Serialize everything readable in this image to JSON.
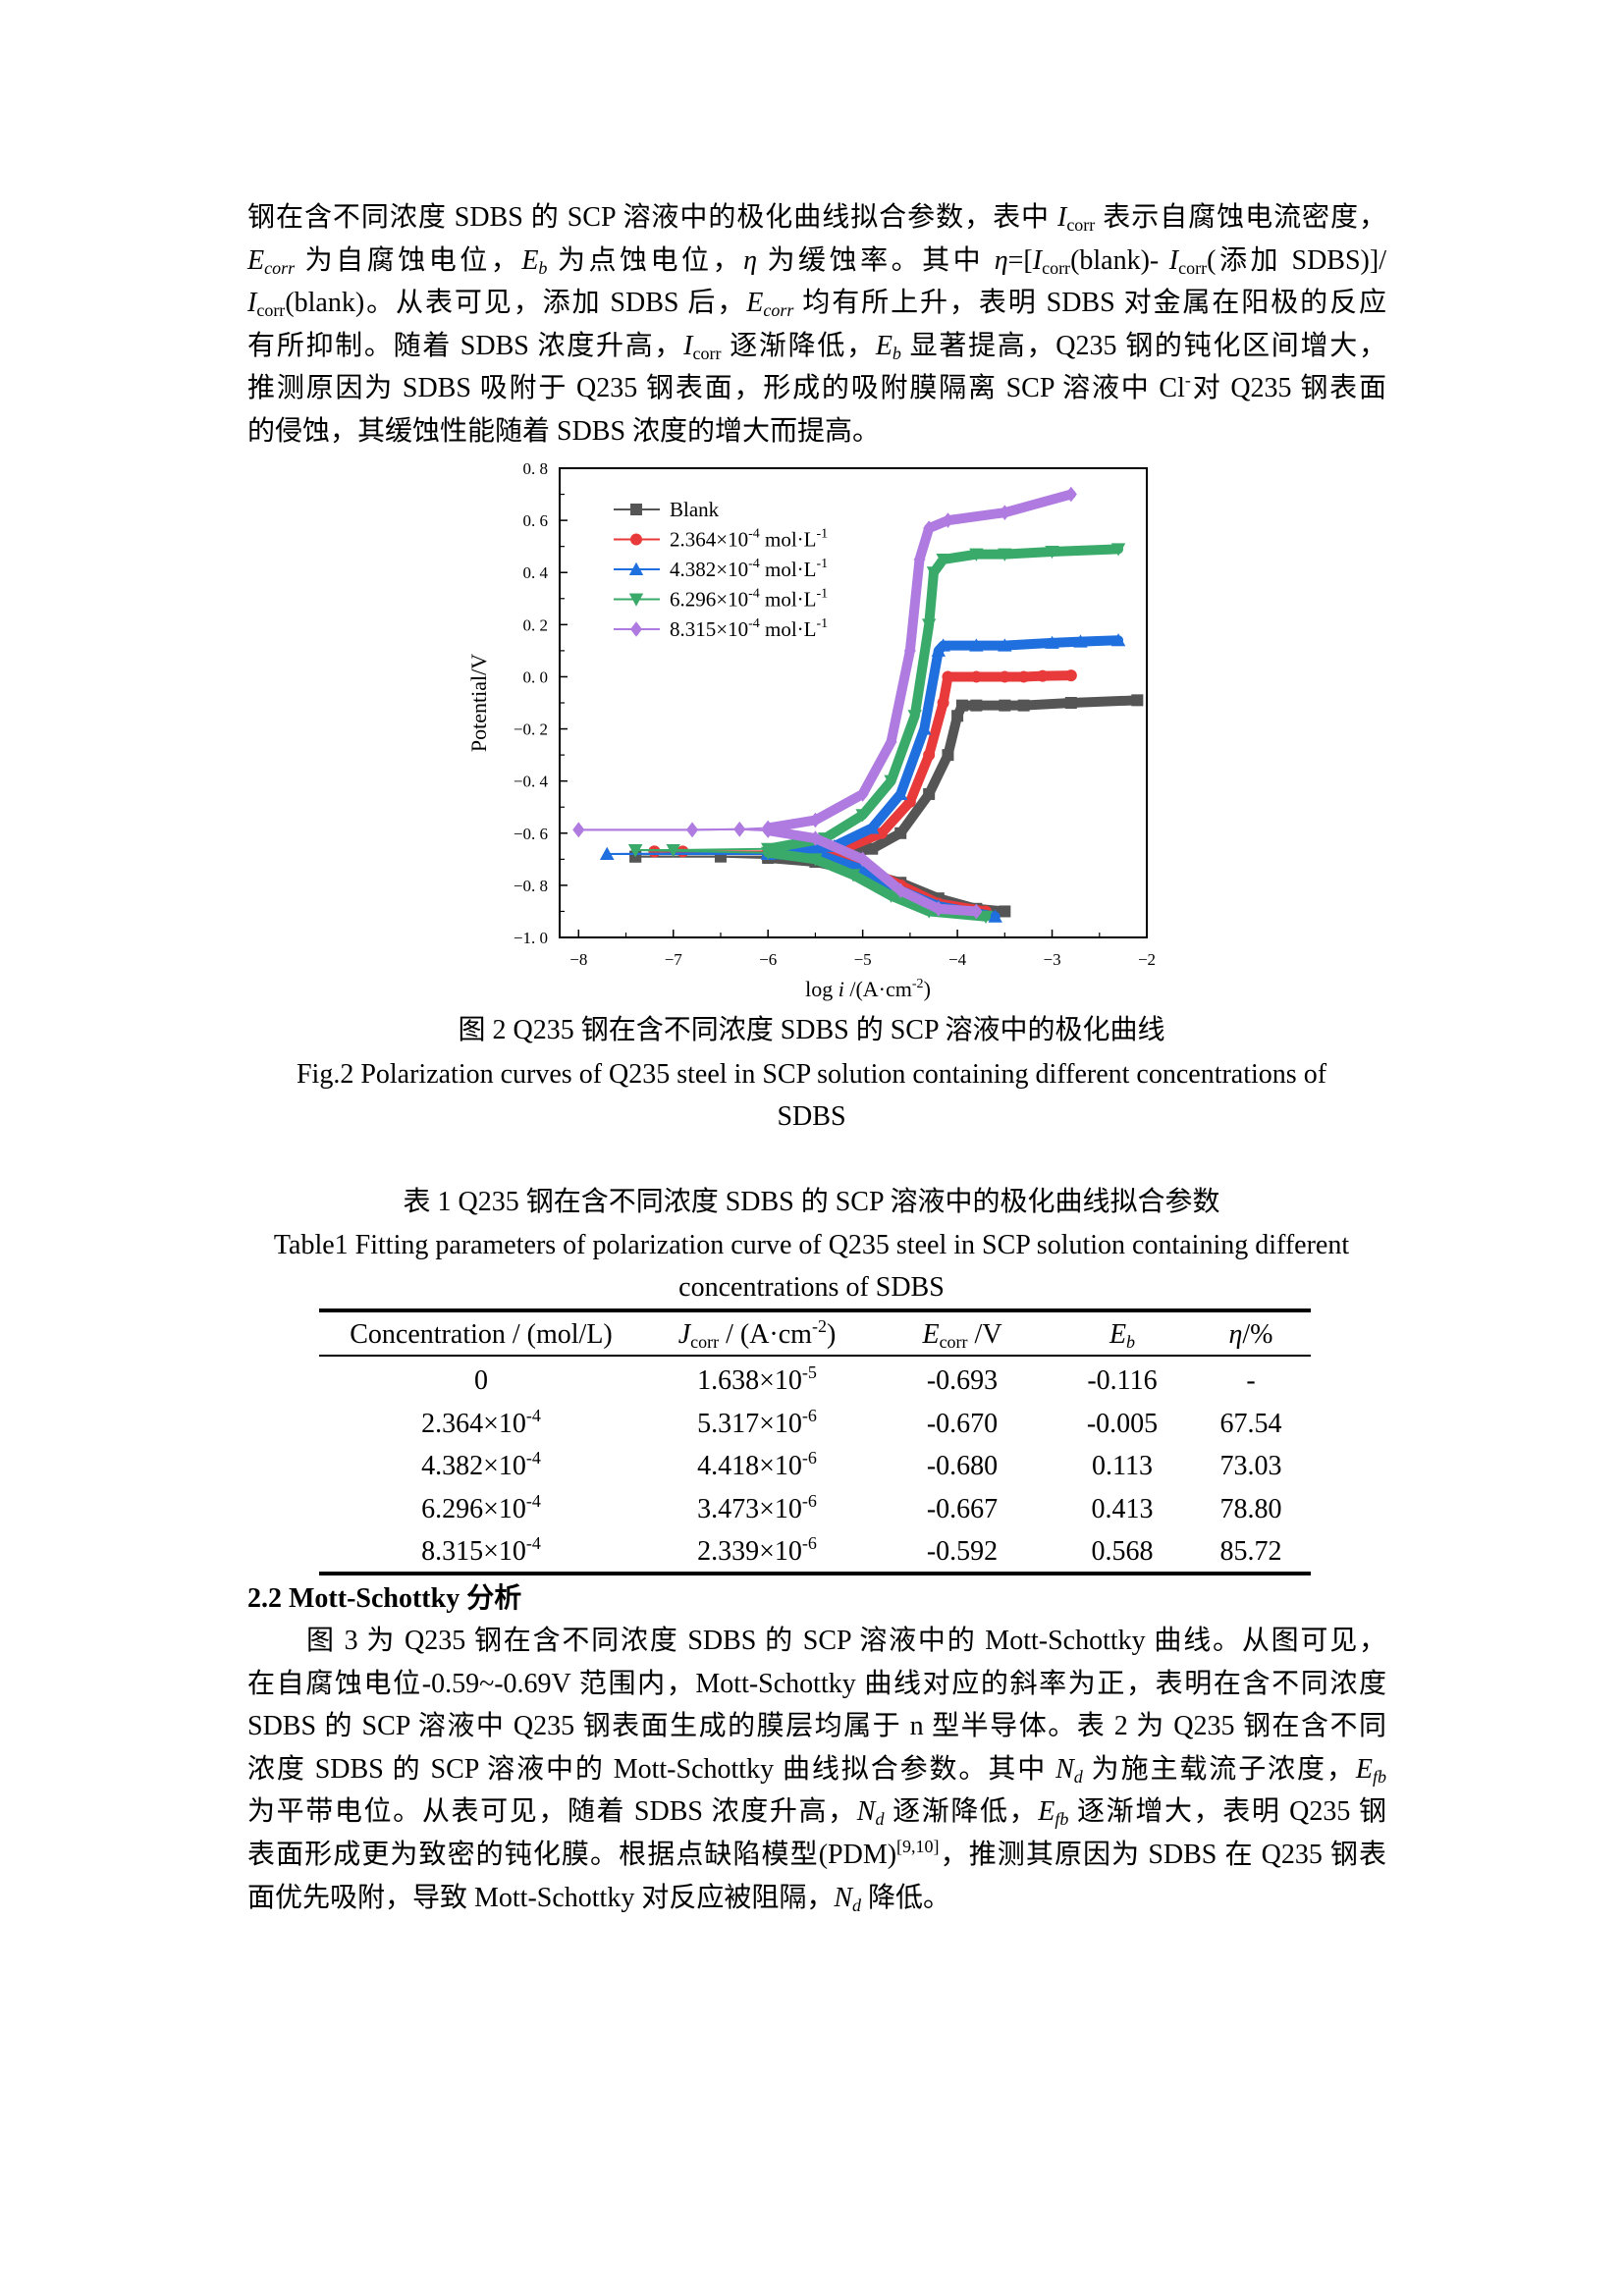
{
  "para1": {
    "lines": [
      [
        [
          "t",
          "钢在含不同浓度 SDBS 的 SCP 溶液中的极化曲线拟合参数，表中 "
        ],
        [
          "i",
          "I"
        ],
        [
          "sub",
          "corr"
        ],
        [
          "t",
          " 表示自腐蚀电流密度，"
        ]
      ],
      [
        [
          "i",
          "E"
        ],
        [
          "isub",
          "corr"
        ],
        [
          "t",
          " 为自腐蚀电位，"
        ],
        [
          "i",
          "E"
        ],
        [
          "isub",
          "b"
        ],
        [
          "t",
          " 为点蚀电位，"
        ],
        [
          "i",
          "η"
        ],
        [
          "t",
          " 为缓蚀率。其中 "
        ],
        [
          "i",
          "η"
        ],
        [
          "t",
          "=["
        ],
        [
          "i",
          "I"
        ],
        [
          "sub",
          "corr"
        ],
        [
          "t",
          "(blank)- "
        ],
        [
          "i",
          "I"
        ],
        [
          "sub",
          "corr"
        ],
        [
          "t",
          "(添加 SDBS)]/"
        ]
      ],
      [
        [
          "i",
          "I"
        ],
        [
          "sub",
          "corr"
        ],
        [
          "t",
          "(blank)。从表可见，添加 SDBS 后，"
        ],
        [
          "i",
          "E"
        ],
        [
          "isub",
          "corr"
        ],
        [
          "t",
          " 均有所上升，表明 SDBS 对金属在阳极的反应"
        ]
      ],
      [
        [
          "t",
          "有所抑制。随着 SDBS 浓度升高，"
        ],
        [
          "i",
          "I"
        ],
        [
          "sub",
          "corr"
        ],
        [
          "t",
          " 逐渐降低，"
        ],
        [
          "i",
          "E"
        ],
        [
          "isub",
          "b"
        ],
        [
          "t",
          " 显著提高，Q235 钢的钝化区间增大，"
        ]
      ],
      [
        [
          "t",
          "推测原因为 SDBS 吸附于 Q235 钢表面，形成的吸附膜隔离 SCP 溶液中 Cl"
        ],
        [
          "sup",
          "-"
        ],
        [
          "t",
          "对 Q235 钢表面"
        ]
      ],
      [
        [
          "t",
          "的侵蚀，其缓蚀性能随着 SDBS 浓度的增大而提高。"
        ]
      ]
    ]
  },
  "figure": {
    "caption_cn": "图 2 Q235 钢在含不同浓度 SDBS 的 SCP 溶液中的极化曲线",
    "caption_en_1": "Fig.2 Polarization curves of Q235 steel in SCP solution containing different concentrations of",
    "caption_en_2": "SDBS"
  },
  "chart_data": {
    "type": "line",
    "title": "",
    "xlabel": "log i /(A·cm-2)",
    "xlabel_parts": [
      "log ",
      "i",
      " /(A·cm",
      "-2",
      ")"
    ],
    "ylabel": "Potential/V",
    "xlim": [
      -8.2,
      -2
    ],
    "ylim": [
      -1.0,
      0.8
    ],
    "xticks": [
      -8,
      -7,
      -6,
      -5,
      -4,
      -3,
      -2
    ],
    "xtick_labels": [
      "−8",
      "−7",
      "−6",
      "−5",
      "−4",
      "−3",
      "−2"
    ],
    "yticks": [
      0.8,
      0.6,
      0.4,
      0.2,
      0.0,
      -0.2,
      -0.4,
      -0.6,
      -0.8,
      -1.0
    ],
    "ytick_labels": [
      "0. 8",
      "0. 6",
      "0. 4",
      "0. 2",
      "0. 0",
      "−0. 2",
      "−0. 4",
      "−0. 6",
      "−0. 8",
      "−1. 0"
    ],
    "grid": false,
    "legend_position": "top-left",
    "series": [
      {
        "name": "Blank",
        "label": [
          "Blank",
          "",
          ""
        ],
        "color": "#555555",
        "marker": "square",
        "cathodic": [
          [
            -7.4,
            -0.69
          ],
          [
            -6.5,
            -0.69
          ],
          [
            -6,
            -0.695
          ],
          [
            -5.5,
            -0.71
          ],
          [
            -5,
            -0.75
          ],
          [
            -4.6,
            -0.79
          ],
          [
            -4.2,
            -0.85
          ],
          [
            -3.8,
            -0.89
          ],
          [
            -3.5,
            -0.9
          ]
        ],
        "anodic": [
          [
            -7.4,
            -0.69
          ],
          [
            -6,
            -0.69
          ],
          [
            -5.3,
            -0.685
          ],
          [
            -4.9,
            -0.66
          ],
          [
            -4.6,
            -0.6
          ],
          [
            -4.3,
            -0.45
          ],
          [
            -4.1,
            -0.3
          ],
          [
            -4.0,
            -0.15
          ],
          [
            -3.95,
            -0.11
          ],
          [
            -3.8,
            -0.11
          ],
          [
            -3.5,
            -0.11
          ],
          [
            -3.3,
            -0.11
          ],
          [
            -2.8,
            -0.1
          ],
          [
            -2.1,
            -0.09
          ]
        ]
      },
      {
        "name": "2.364×10-4 mol·L-1",
        "label": [
          "2.364×10",
          "-4",
          " mol·L",
          "-1"
        ],
        "color": "#e83a3a",
        "marker": "circle",
        "cathodic": [
          [
            -7.2,
            -0.67
          ],
          [
            -6,
            -0.675
          ],
          [
            -5.3,
            -0.69
          ],
          [
            -5,
            -0.73
          ],
          [
            -4.6,
            -0.8
          ],
          [
            -4.2,
            -0.87
          ],
          [
            -3.7,
            -0.9
          ]
        ],
        "anodic": [
          [
            -7.2,
            -0.67
          ],
          [
            -6.9,
            -0.67
          ],
          [
            -6,
            -0.67
          ],
          [
            -5.2,
            -0.66
          ],
          [
            -4.8,
            -0.6
          ],
          [
            -4.5,
            -0.48
          ],
          [
            -4.3,
            -0.3
          ],
          [
            -4.15,
            -0.1
          ],
          [
            -4.1,
            0.0
          ],
          [
            -3.8,
            0.0
          ],
          [
            -3.5,
            0.0
          ],
          [
            -3.3,
            0.0
          ],
          [
            -3.1,
            0.003
          ],
          [
            -2.8,
            0.005
          ]
        ]
      },
      {
        "name": "4.382×10-4 mol·L-1",
        "label": [
          "4.382×10",
          "-4",
          " mol·L",
          "-1"
        ],
        "color": "#1f6fde",
        "marker": "triangle-up",
        "cathodic": [
          [
            -7.7,
            -0.68
          ],
          [
            -6,
            -0.68
          ],
          [
            -5.4,
            -0.69
          ],
          [
            -5,
            -0.74
          ],
          [
            -4.6,
            -0.82
          ],
          [
            -4.2,
            -0.88
          ],
          [
            -3.6,
            -0.92
          ]
        ],
        "anodic": [
          [
            -7.7,
            -0.68
          ],
          [
            -6,
            -0.675
          ],
          [
            -5.3,
            -0.65
          ],
          [
            -4.9,
            -0.58
          ],
          [
            -4.6,
            -0.45
          ],
          [
            -4.35,
            -0.2
          ],
          [
            -4.2,
            0.1
          ],
          [
            -4.15,
            0.12
          ],
          [
            -3.8,
            0.12
          ],
          [
            -3.5,
            0.12
          ],
          [
            -3.0,
            0.13
          ],
          [
            -2.7,
            0.135
          ],
          [
            -2.3,
            0.14
          ]
        ]
      },
      {
        "name": "6.296×10-4 mol·L-1",
        "label": [
          "6.296×10",
          "-4",
          " mol·L",
          "-1"
        ],
        "color": "#3aaa6a",
        "marker": "triangle-down",
        "cathodic": [
          [
            -7.4,
            -0.665
          ],
          [
            -6,
            -0.675
          ],
          [
            -5.5,
            -0.7
          ],
          [
            -5.1,
            -0.76
          ],
          [
            -4.7,
            -0.84
          ],
          [
            -4.3,
            -0.9
          ],
          [
            -3.7,
            -0.92
          ]
        ],
        "anodic": [
          [
            -7.4,
            -0.665
          ],
          [
            -7.0,
            -0.665
          ],
          [
            -6,
            -0.66
          ],
          [
            -5.4,
            -0.62
          ],
          [
            -5.0,
            -0.53
          ],
          [
            -4.7,
            -0.4
          ],
          [
            -4.45,
            -0.15
          ],
          [
            -4.3,
            0.2
          ],
          [
            -4.25,
            0.4
          ],
          [
            -4.15,
            0.45
          ],
          [
            -3.8,
            0.47
          ],
          [
            -3.5,
            0.47
          ],
          [
            -3.0,
            0.48
          ],
          [
            -2.3,
            0.49
          ]
        ]
      },
      {
        "name": "8.315×10-4 mol·L-1",
        "label": [
          "8.315×10",
          "-4",
          " mol·L",
          "-1"
        ],
        "color": "#b07be0",
        "marker": "diamond",
        "cathodic": [
          [
            -8,
            -0.587
          ],
          [
            -6.8,
            -0.587
          ],
          [
            -6.3,
            -0.585
          ],
          [
            -6,
            -0.59
          ],
          [
            -5.5,
            -0.62
          ],
          [
            -5.0,
            -0.7
          ],
          [
            -4.6,
            -0.82
          ],
          [
            -4.2,
            -0.89
          ],
          [
            -3.8,
            -0.9
          ]
        ],
        "anodic": [
          [
            -8,
            -0.587
          ],
          [
            -6.8,
            -0.587
          ],
          [
            -6.3,
            -0.585
          ],
          [
            -6,
            -0.58
          ],
          [
            -5.5,
            -0.55
          ],
          [
            -5.0,
            -0.45
          ],
          [
            -4.7,
            -0.25
          ],
          [
            -4.5,
            0.1
          ],
          [
            -4.4,
            0.45
          ],
          [
            -4.3,
            0.57
          ],
          [
            -4.1,
            0.6
          ],
          [
            -3.5,
            0.63
          ],
          [
            -2.8,
            0.7
          ]
        ]
      }
    ]
  },
  "table": {
    "title_cn": "表 1 Q235 钢在含不同浓度 SDBS 的 SCP 溶液中的极化曲线拟合参数",
    "title_en_1": "Table1 Fitting parameters of polarization curve of Q235 steel in SCP solution containing different",
    "title_en_2": "concentrations of SDBS",
    "headers": [
      [
        [
          "t",
          "Concentration / (mol/L)"
        ]
      ],
      [
        [
          "i",
          "J"
        ],
        [
          "sub",
          "corr"
        ],
        [
          "t",
          " / (A·cm"
        ],
        [
          "sup",
          "-2"
        ],
        [
          "t",
          ")"
        ]
      ],
      [
        [
          "i",
          "E"
        ],
        [
          "sub",
          "corr"
        ],
        [
          "t",
          " /V"
        ]
      ],
      [
        [
          "i",
          "E"
        ],
        [
          "isub",
          "b"
        ]
      ],
      [
        [
          "i",
          "η"
        ],
        [
          "t",
          "/%"
        ]
      ]
    ],
    "rows": [
      [
        [
          [
            "t",
            "0"
          ]
        ],
        [
          [
            "t",
            "1.638×10"
          ],
          [
            "sup",
            "-5"
          ]
        ],
        [
          [
            "t",
            "-0.693"
          ]
        ],
        [
          [
            "t",
            "-0.116"
          ]
        ],
        [
          [
            "t",
            "-"
          ]
        ]
      ],
      [
        [
          [
            "t",
            "2.364×10"
          ],
          [
            "sup",
            "-4"
          ]
        ],
        [
          [
            "t",
            "5.317×10"
          ],
          [
            "sup",
            "-6"
          ]
        ],
        [
          [
            "t",
            "-0.670"
          ]
        ],
        [
          [
            "t",
            "-0.005"
          ]
        ],
        [
          [
            "t",
            "67.54"
          ]
        ]
      ],
      [
        [
          [
            "t",
            "4.382×10"
          ],
          [
            "sup",
            "-4"
          ]
        ],
        [
          [
            "t",
            "4.418×10"
          ],
          [
            "sup",
            "-6"
          ]
        ],
        [
          [
            "t",
            "-0.680"
          ]
        ],
        [
          [
            "t",
            "0.113"
          ]
        ],
        [
          [
            "t",
            "73.03"
          ]
        ]
      ],
      [
        [
          [
            "t",
            "6.296×10"
          ],
          [
            "sup",
            "-4"
          ]
        ],
        [
          [
            "t",
            "3.473×10"
          ],
          [
            "sup",
            "-6"
          ]
        ],
        [
          [
            "t",
            "-0.667"
          ]
        ],
        [
          [
            "t",
            "0.413"
          ]
        ],
        [
          [
            "t",
            "78.80"
          ]
        ]
      ],
      [
        [
          [
            "t",
            "8.315×10"
          ],
          [
            "sup",
            "-4"
          ]
        ],
        [
          [
            "t",
            "2.339×10"
          ],
          [
            "sup",
            "-6"
          ]
        ],
        [
          [
            "t",
            "-0.592"
          ]
        ],
        [
          [
            "t",
            "0.568"
          ]
        ],
        [
          [
            "t",
            "85.72"
          ]
        ]
      ]
    ]
  },
  "section": {
    "heading": "2.2 Mott-Schottky 分析"
  },
  "para2": {
    "lines": [
      [
        [
          "t",
          "图 3 为 Q235 钢在含不同浓度 SDBS 的 SCP 溶液中的 Mott-Schottky 曲线。从图可见，"
        ]
      ],
      [
        [
          "t",
          "在自腐蚀电位-0.59~-0.69V 范围内，Mott-Schottky 曲线对应的斜率为正，表明在含不同浓度"
        ]
      ],
      [
        [
          "t",
          "SDBS 的 SCP 溶液中 Q235 钢表面生成的膜层均属于 n 型半导体。表 2 为 Q235 钢在含不同"
        ]
      ],
      [
        [
          "t",
          "浓度 SDBS 的 SCP 溶液中的 Mott-Schottky 曲线拟合参数。其中 "
        ],
        [
          "i",
          "N"
        ],
        [
          "isub",
          "d"
        ],
        [
          "t",
          " 为施主载流子浓度，"
        ],
        [
          "i",
          "E"
        ],
        [
          "isub",
          "fb"
        ]
      ],
      [
        [
          "t",
          "为平带电位。从表可见，随着 SDBS 浓度升高，"
        ],
        [
          "i",
          "N"
        ],
        [
          "isub",
          "d"
        ],
        [
          "t",
          " 逐渐降低，"
        ],
        [
          "i",
          "E"
        ],
        [
          "isub",
          "fb"
        ],
        [
          "t",
          " 逐渐增大，表明 Q235 钢"
        ]
      ],
      [
        [
          "t",
          "表面形成更为致密的钝化膜。根据点缺陷模型(PDM)"
        ],
        [
          "sup",
          "[9,10]"
        ],
        [
          "t",
          "，推测其原因为 SDBS 在 Q235 钢表"
        ]
      ],
      [
        [
          "t",
          "面优先吸附，导致 Mott-Schottky 对反应被阻隔，"
        ],
        [
          "i",
          "N"
        ],
        [
          "isub",
          "d"
        ],
        [
          "t",
          " 降低。"
        ]
      ]
    ]
  }
}
